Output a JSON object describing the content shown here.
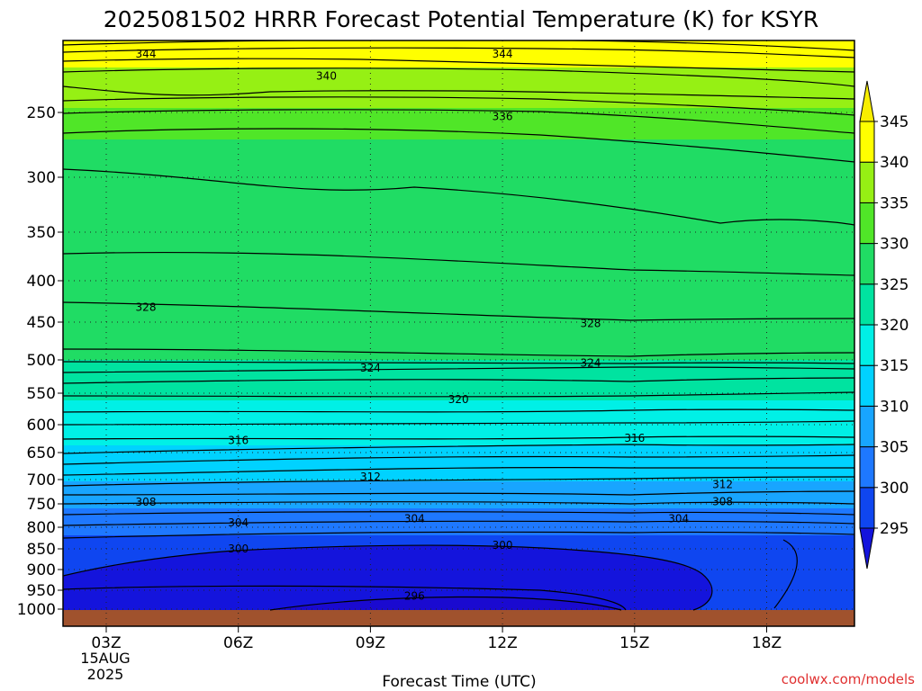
{
  "chart_data": {
    "type": "heatmap",
    "title": "2025081502 HRRR Forecast Potential Temperature (K) for KSYR",
    "xlabel": "Forecast Time (UTC)",
    "ylabel": "",
    "date_label": [
      "15AUG",
      "2025"
    ],
    "x_ticks": [
      {
        "label": "03Z",
        "hour": 3
      },
      {
        "label": "06Z",
        "hour": 6
      },
      {
        "label": "09Z",
        "hour": 9
      },
      {
        "label": "12Z",
        "hour": 12
      },
      {
        "label": "15Z",
        "hour": 15
      },
      {
        "label": "18Z",
        "hour": 18
      }
    ],
    "xlim": [
      2,
      20
    ],
    "y_ticks": [
      250,
      300,
      350,
      400,
      450,
      500,
      550,
      600,
      650,
      700,
      750,
      800,
      850,
      900,
      950,
      1000
    ],
    "ylim": [
      1000,
      200
    ],
    "y_scale": "log-pressure",
    "grid": "dotted",
    "colorbar": {
      "levels": [
        295,
        300,
        305,
        310,
        315,
        320,
        325,
        330,
        335,
        340,
        345
      ],
      "colors": [
        "#1414dc",
        "#0f46f0",
        "#1e78ff",
        "#18a5ff",
        "#00d2ff",
        "#00f0e6",
        "#00e3a0",
        "#20dc64",
        "#50e628",
        "#96f014",
        "#ffff00",
        "#f8ee00"
      ],
      "extend": "both"
    },
    "contour_interval": 2,
    "contour_labels": [
      {
        "value": 344,
        "hour": 3.9,
        "p": 205
      },
      {
        "value": 344,
        "hour": 12.0,
        "p": 205
      },
      {
        "value": 340,
        "hour": 8.0,
        "p": 222
      },
      {
        "value": 336,
        "hour": 12.0,
        "p": 253
      },
      {
        "value": 328,
        "hour": 3.9,
        "p": 432
      },
      {
        "value": 328,
        "hour": 14.0,
        "p": 452
      },
      {
        "value": 324,
        "hour": 9.0,
        "p": 512
      },
      {
        "value": 324,
        "hour": 14.0,
        "p": 505
      },
      {
        "value": 320,
        "hour": 11.0,
        "p": 560
      },
      {
        "value": 316,
        "hour": 6.0,
        "p": 628
      },
      {
        "value": 316,
        "hour": 15.0,
        "p": 624
      },
      {
        "value": 312,
        "hour": 9.0,
        "p": 695
      },
      {
        "value": 312,
        "hour": 17.0,
        "p": 710
      },
      {
        "value": 308,
        "hour": 3.9,
        "p": 746
      },
      {
        "value": 308,
        "hour": 17.0,
        "p": 745
      },
      {
        "value": 304,
        "hour": 6.0,
        "p": 790
      },
      {
        "value": 304,
        "hour": 10.0,
        "p": 782
      },
      {
        "value": 304,
        "hour": 16.0,
        "p": 782
      },
      {
        "value": 300,
        "hour": 6.0,
        "p": 850
      },
      {
        "value": 300,
        "hour": 12.0,
        "p": 842
      },
      {
        "value": 296,
        "hour": 10.0,
        "p": 965
      }
    ],
    "ground": {
      "p_top": 1000,
      "color": "#a0522d"
    }
  },
  "credit": "coolwx.com/models"
}
